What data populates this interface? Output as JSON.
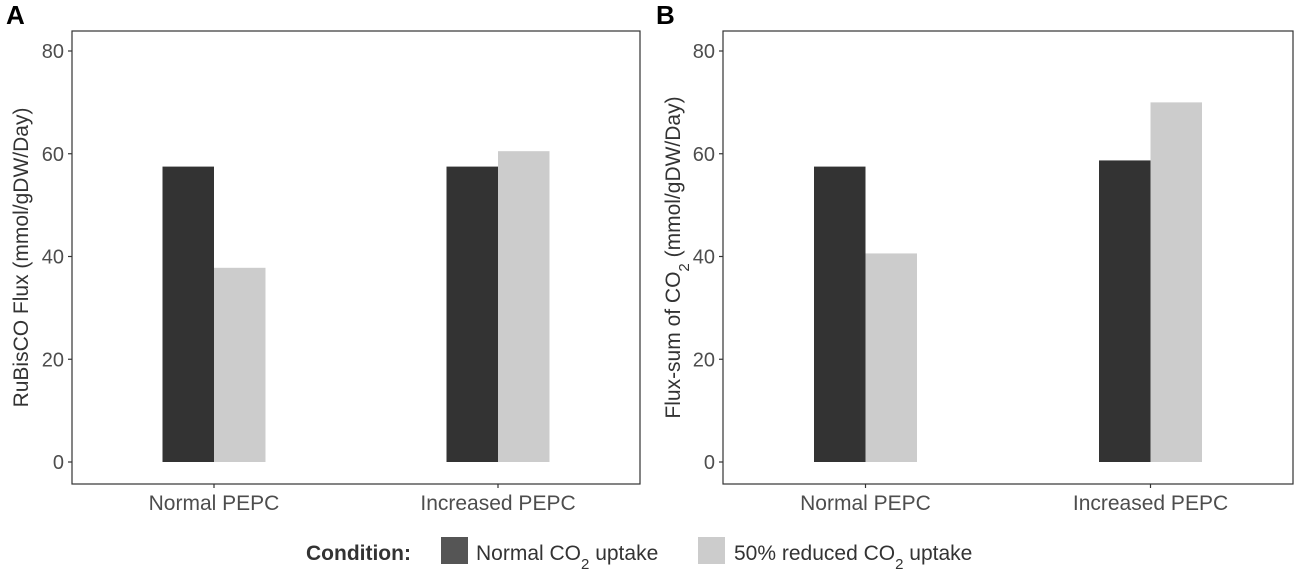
{
  "colors": {
    "normal": "#333333",
    "reduced": "#cccccc",
    "axis_text": "#4d4d4d",
    "legend_title": "#333333"
  },
  "legend": {
    "title": "Condition:",
    "items": [
      {
        "pre": "Normal CO",
        "sub": "2",
        "post": " uptake",
        "color_key": "normal"
      },
      {
        "pre": "50% reduced CO",
        "sub": "2",
        "post": " uptake",
        "color_key": "reduced"
      }
    ]
  },
  "chart_data": [
    {
      "panel": "A",
      "type": "bar",
      "ylabel": {
        "pre": "RuBisCO Flux (mmol/gDW/Day)",
        "sub": "",
        "post": ""
      },
      "categories": [
        "Normal PEPC",
        "Increased PEPC"
      ],
      "yticks": [
        0,
        20,
        40,
        60,
        80
      ],
      "ylim": [
        0,
        80
      ],
      "series": [
        {
          "name": "Normal CO2 uptake",
          "color_key": "normal",
          "values": [
            57.5,
            57.5
          ]
        },
        {
          "name": "50% reduced CO2 uptake",
          "color_key": "reduced",
          "values": [
            37.8,
            60.5
          ]
        }
      ]
    },
    {
      "panel": "B",
      "type": "bar",
      "ylabel": {
        "pre": "Flux-sum of CO",
        "sub": "2",
        "post": " (mmol/gDW/Day)"
      },
      "categories": [
        "Normal PEPC",
        "Increased PEPC"
      ],
      "yticks": [
        0,
        20,
        40,
        60,
        80
      ],
      "ylim": [
        0,
        80
      ],
      "series": [
        {
          "name": "Normal CO2 uptake",
          "color_key": "normal",
          "values": [
            57.5,
            58.7
          ]
        },
        {
          "name": "50% reduced CO2 uptake",
          "color_key": "reduced",
          "values": [
            40.6,
            70.0
          ]
        }
      ]
    }
  ]
}
